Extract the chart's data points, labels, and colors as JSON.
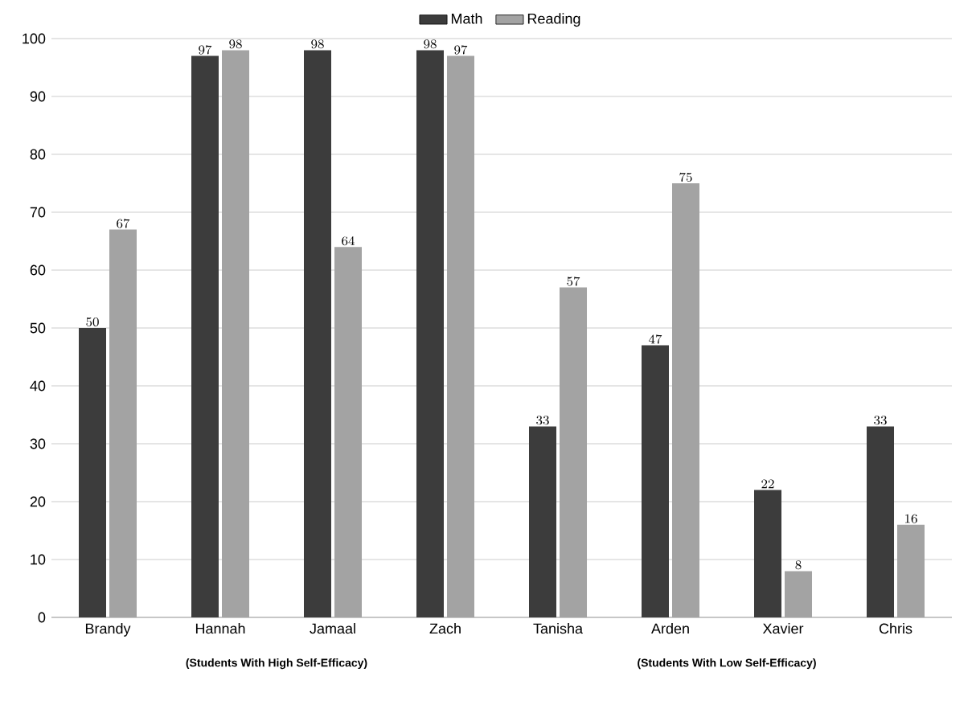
{
  "chart_data": {
    "type": "bar",
    "categories": [
      "Brandy",
      "Hannah",
      "Jamaal",
      "Zach",
      "Tanisha",
      "Arden",
      "Xavier",
      "Chris"
    ],
    "series": [
      {
        "name": "Math",
        "color": "#3c3c3c",
        "values": [
          50,
          97,
          98,
          98,
          33,
          47,
          22,
          33
        ]
      },
      {
        "name": "Reading",
        "color": "#a3a3a3",
        "values": [
          67,
          98,
          64,
          97,
          57,
          75,
          8,
          16
        ]
      }
    ],
    "ylim": [
      0,
      100
    ],
    "yticks": [
      0,
      10,
      20,
      30,
      40,
      50,
      60,
      70,
      80,
      90,
      100
    ],
    "grid": "y",
    "legend": "top",
    "data_labels": true,
    "annotations": [
      "(Students With High Self-Efficacy)",
      "(Students With Low Self-Efficacy)"
    ]
  }
}
